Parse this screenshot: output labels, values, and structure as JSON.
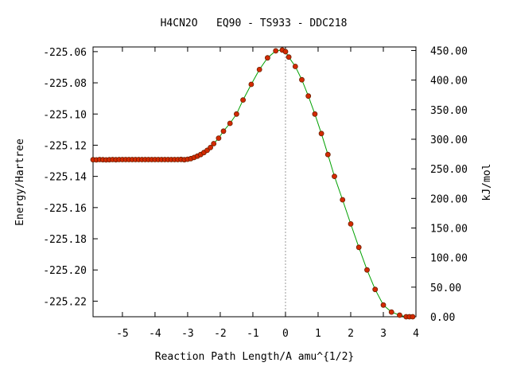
{
  "chart_data": {
    "type": "line",
    "title": "H4CN2O   EQ90 - TS933 - DDC218",
    "xlabel": "Reaction Path Length/A amu^{1/2}",
    "ylabel": "Energy/Hartree",
    "y2label": "kJ/mol",
    "xlim": [
      -5.9,
      4.0
    ],
    "ylim": [
      -225.23,
      -225.057
    ],
    "y2lim": [
      0.0,
      456.0
    ],
    "xticks": [
      -5,
      -4,
      -3,
      -2,
      -1,
      0,
      1,
      2,
      3,
      4
    ],
    "xtick_labels": [
      "-5",
      "-4",
      "-3",
      "-2",
      "-1",
      "0",
      "1",
      "2",
      "3",
      "4"
    ],
    "yticks": [
      -225.06,
      -225.08,
      -225.1,
      -225.12,
      -225.14,
      -225.16,
      -225.18,
      -225.2,
      -225.22
    ],
    "ytick_labels": [
      "-225.06",
      "-225.08",
      "-225.10",
      "-225.12",
      "-225.14",
      "-225.16",
      "-225.18",
      "-225.20",
      "-225.22"
    ],
    "y2ticks": [
      450,
      400,
      350,
      300,
      250,
      200,
      150,
      100,
      50,
      0
    ],
    "y2tick_labels": [
      "450.00",
      "400.00",
      "350.00",
      "300.00",
      "250.00",
      "200.00",
      "150.00",
      "100.00",
      "50.00",
      "0.00"
    ],
    "ts_marker_x": 0.0,
    "grid": false,
    "colors": {
      "line": "#00a000",
      "marker": "#d42a00",
      "marker_edge": "#6a2000",
      "ts_line": "#999999"
    },
    "series": [
      {
        "x": [
          -5.9,
          -5.8,
          -5.7,
          -5.6,
          -5.5,
          -5.4,
          -5.3,
          -5.2,
          -5.1,
          -5.0,
          -4.9,
          -4.8,
          -4.7,
          -4.6,
          -4.5,
          -4.4,
          -4.3,
          -4.2,
          -4.1,
          -4.0,
          -3.9,
          -3.8,
          -3.7,
          -3.6,
          -3.5,
          -3.4,
          -3.3,
          -3.2,
          -3.1,
          -3.0,
          -2.9,
          -2.8,
          -2.7,
          -2.6,
          -2.5,
          -2.4,
          -2.3,
          -2.2,
          -2.05,
          -1.9,
          -1.7,
          -1.5,
          -1.3,
          -1.05,
          -0.8,
          -0.55,
          -0.3,
          -0.1,
          0.0,
          0.1,
          0.3,
          0.5,
          0.7,
          0.9,
          1.1,
          1.3,
          1.5,
          1.75,
          2.0,
          2.25,
          2.5,
          2.75,
          3.0,
          3.25,
          3.5,
          3.7,
          3.8,
          3.9
        ],
        "y": [
          -225.1293,
          -225.1294,
          -225.1292,
          -225.1293,
          -225.1294,
          -225.1293,
          -225.1292,
          -225.1293,
          -225.1292,
          -225.1292,
          -225.1292,
          -225.1292,
          -225.1292,
          -225.1292,
          -225.1292,
          -225.1292,
          -225.1292,
          -225.1292,
          -225.1292,
          -225.1292,
          -225.1292,
          -225.1292,
          -225.1292,
          -225.1292,
          -225.1292,
          -225.1292,
          -225.1292,
          -225.1291,
          -225.1293,
          -225.129,
          -225.1286,
          -225.1279,
          -225.127,
          -225.126,
          -225.1247,
          -225.1233,
          -225.1215,
          -225.119,
          -225.1155,
          -225.111,
          -225.106,
          -225.1,
          -225.091,
          -225.081,
          -225.0715,
          -225.064,
          -225.0595,
          -225.059,
          -225.06,
          -225.0635,
          -225.0695,
          -225.078,
          -225.0885,
          -225.1,
          -225.1125,
          -225.126,
          -225.14,
          -225.155,
          -225.1705,
          -225.1855,
          -225.2,
          -225.2125,
          -225.2225,
          -225.227,
          -225.229,
          -225.23,
          -225.23,
          -225.23
        ]
      }
    ]
  }
}
